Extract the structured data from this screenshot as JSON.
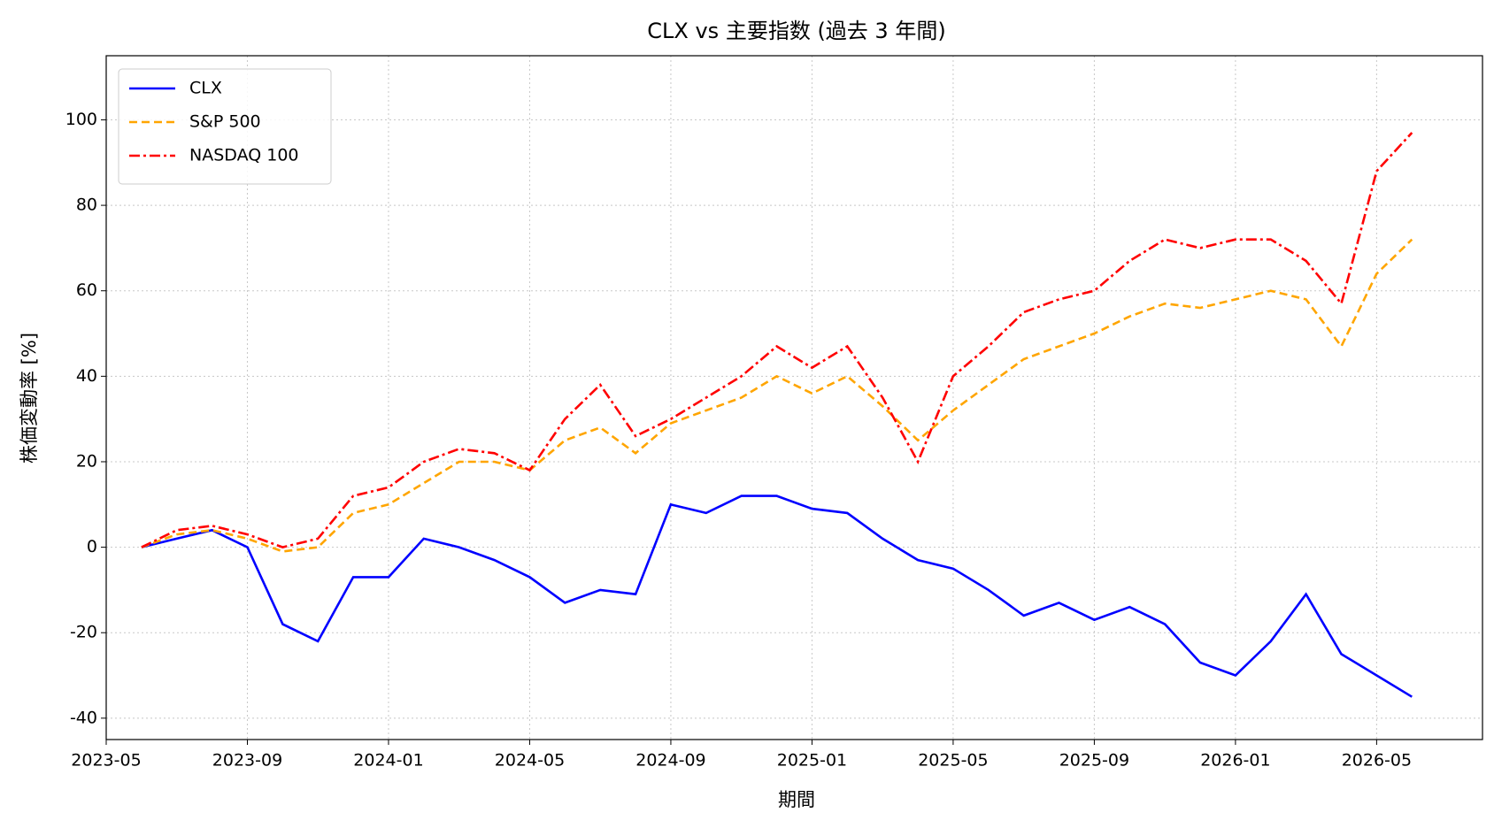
{
  "chart_data": {
    "type": "line",
    "title": "CLX vs 主要指数 (過去 3 年間)",
    "x_label": "期間",
    "y_label": "株価変動率 [%]",
    "x": [
      "2023-06",
      "2023-07",
      "2023-08",
      "2023-09",
      "2023-10",
      "2023-11",
      "2023-12",
      "2024-01",
      "2024-02",
      "2024-03",
      "2024-04",
      "2024-05",
      "2024-06",
      "2024-07",
      "2024-08",
      "2024-09",
      "2024-10",
      "2024-11",
      "2024-12",
      "2025-01",
      "2025-02",
      "2025-03",
      "2025-04",
      "2025-05",
      "2025-06",
      "2025-07",
      "2025-08",
      "2025-09",
      "2025-10",
      "2025-11",
      "2025-12",
      "2026-01",
      "2026-02",
      "2026-03",
      "2026-04",
      "2026-05",
      "2026-06"
    ],
    "series": [
      {
        "name": "CLX",
        "color": "#0000ff",
        "linestyle": "solid",
        "values": [
          0,
          2,
          4,
          0,
          -18,
          -22,
          -7,
          -7,
          2,
          0,
          -3,
          -7,
          -13,
          -10,
          -11,
          10,
          8,
          12,
          12,
          9,
          8,
          2,
          -3,
          -5,
          -10,
          -16,
          -13,
          -17,
          -14,
          -18,
          -27,
          -30,
          -22,
          -11,
          -25,
          -30,
          -35
        ]
      },
      {
        "name": "S&P 500",
        "color": "#ffa500",
        "linestyle": "dashed",
        "values": [
          0,
          3,
          4,
          2,
          -1,
          0,
          8,
          10,
          15,
          20,
          20,
          18,
          25,
          28,
          22,
          29,
          32,
          35,
          40,
          36,
          40,
          33,
          25,
          32,
          38,
          44,
          47,
          50,
          54,
          57,
          56,
          58,
          60,
          58,
          47,
          64,
          72
        ]
      },
      {
        "name": "NASDAQ 100",
        "color": "#ff0000",
        "linestyle": "dashdot",
        "values": [
          0,
          4,
          5,
          3,
          0,
          2,
          12,
          14,
          20,
          23,
          22,
          18,
          30,
          38,
          26,
          30,
          35,
          40,
          47,
          42,
          47,
          35,
          20,
          40,
          47,
          55,
          58,
          60,
          67,
          72,
          70,
          72,
          72,
          67,
          57,
          88,
          97
        ]
      }
    ],
    "xlim": [
      "2023-05",
      "2026-08"
    ],
    "xticks": [
      "2023-05",
      "2023-09",
      "2024-01",
      "2024-05",
      "2024-09",
      "2025-01",
      "2025-05",
      "2025-09",
      "2026-01",
      "2026-05"
    ],
    "ylim": [
      -45,
      115
    ],
    "yticks": [
      -40,
      -20,
      0,
      20,
      40,
      60,
      80,
      100
    ],
    "grid": true,
    "legend": "upper left"
  }
}
